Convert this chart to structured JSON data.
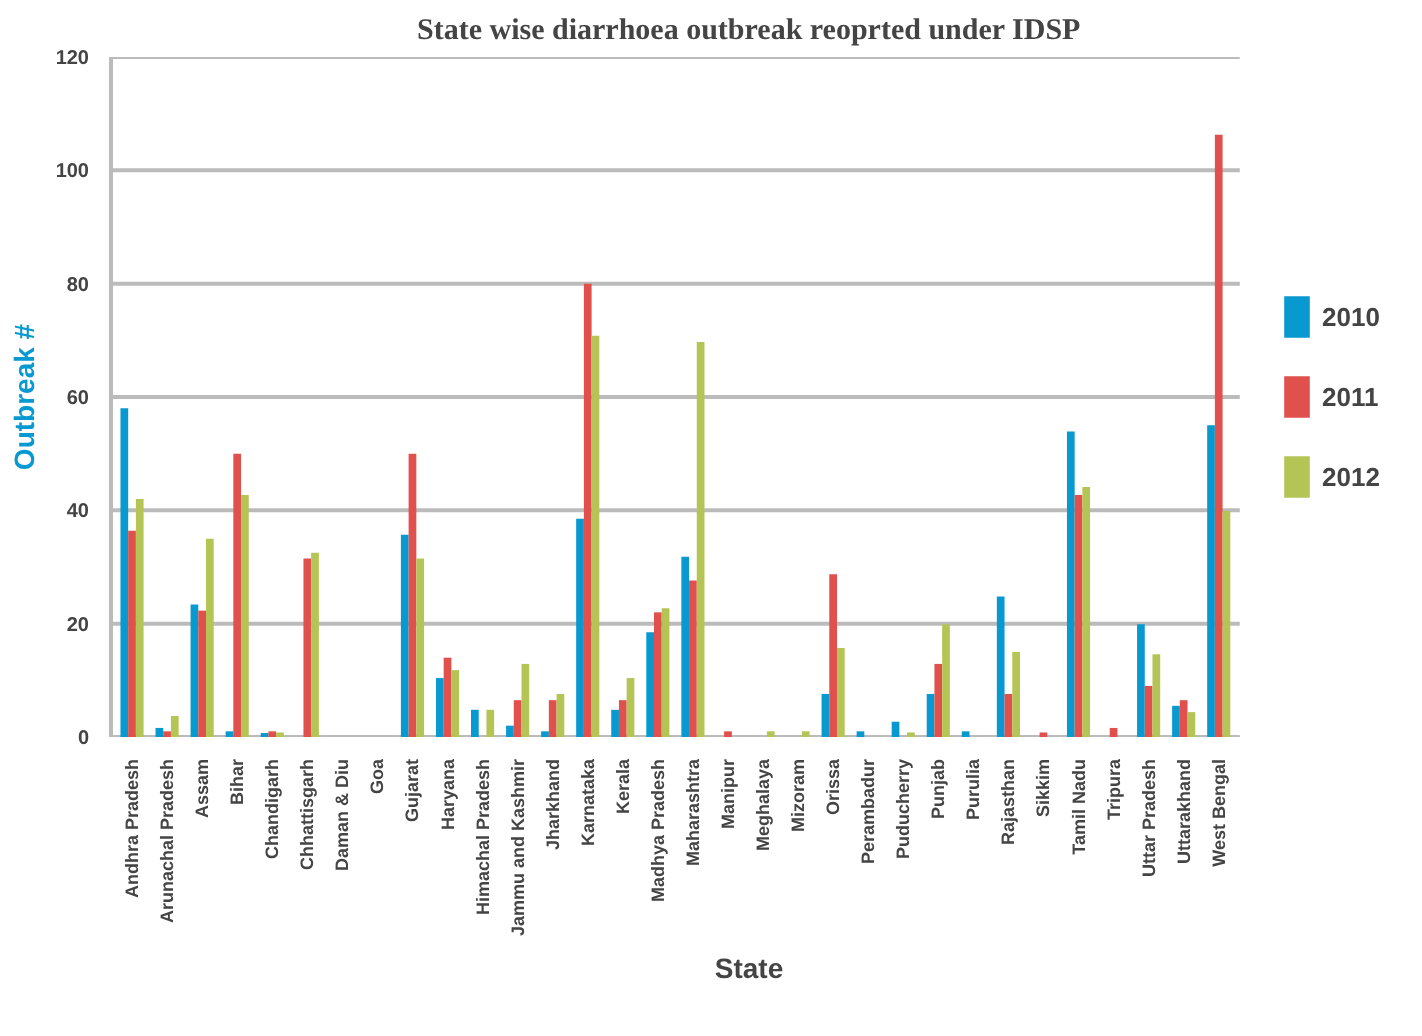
{
  "chart_data": {
    "type": "bar",
    "title": "State wise diarrhoea outbreak reoprted under IDSP",
    "xlabel": "State",
    "ylabel": "Outbreak #",
    "categories": [
      "Andhra Pradesh",
      "Arunachal Pradesh",
      "Assam",
      "Bihar",
      "Chandigarh",
      "Chhattisgarh",
      "Daman & Diu",
      "Goa",
      "Gujarat",
      "Haryana",
      "Himachal Pradesh",
      "Jammu and Kashmir",
      "Jharkhand",
      "Karnataka",
      "Kerala",
      "Madhya Pradesh",
      "Maharashtra",
      "Manipur",
      "Meghalaya",
      "Mizoram",
      "Orissa",
      "Perambadur",
      "Puducherry",
      "Punjab",
      "Purulia",
      "Rajasthan",
      "Sikkim",
      "Tamil Nadu",
      "Tripura",
      "Uttar Pradesh",
      "Uttarakhand",
      "West Bengal"
    ],
    "series": [
      {
        "name": "2010",
        "color": "#0899d1",
        "values": [
          58,
          1.6,
          23.4,
          1,
          0.7,
          0,
          0,
          0,
          35.7,
          10.4,
          4.8,
          2,
          1,
          38.5,
          4.8,
          18.5,
          31.8,
          0,
          0,
          0,
          7.6,
          1,
          2.7,
          7.6,
          1,
          24.8,
          0,
          53.9,
          0,
          19.9,
          5.5,
          55
        ]
      },
      {
        "name": "2011",
        "color": "#e0504c",
        "values": [
          36.4,
          1,
          22.3,
          50,
          1,
          31.5,
          0,
          0,
          50,
          14,
          0,
          6.5,
          6.5,
          80,
          6.5,
          22,
          27.6,
          1,
          0,
          0,
          28.7,
          0,
          0,
          12.9,
          0,
          7.6,
          0.8,
          42.7,
          1.6,
          9,
          6.5,
          106.3
        ]
      },
      {
        "name": "2012",
        "color": "#b5c555",
        "values": [
          42,
          3.7,
          35,
          42.7,
          0.8,
          32.5,
          0,
          0,
          31.5,
          11.8,
          4.8,
          12.9,
          7.6,
          70.8,
          10.4,
          22.7,
          69.7,
          0,
          1,
          1,
          15.7,
          0,
          0.8,
          19.9,
          0,
          15,
          0,
          44.1,
          0,
          14.6,
          4.4,
          39.9
        ]
      }
    ],
    "ylim": [
      0,
      120
    ],
    "yticks": [
      0,
      20,
      40,
      60,
      80,
      100,
      120
    ],
    "grid": "y",
    "legend": "right"
  }
}
